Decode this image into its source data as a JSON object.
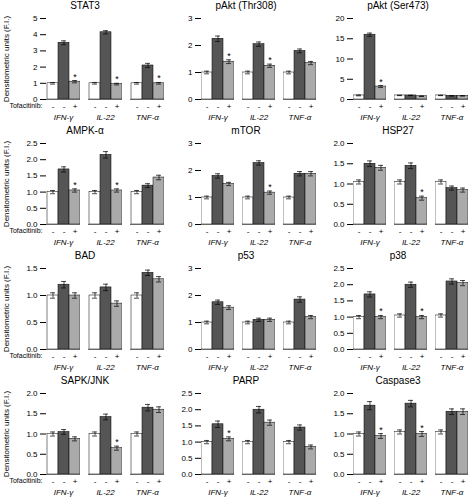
{
  "chart_data": [
    {
      "type": "bar",
      "title": "STAT3",
      "categories": [
        "IFN-γ",
        "IL-22",
        "TNF-α"
      ],
      "series": [
        {
          "name": "-",
          "color": "white",
          "values": [
            1.0,
            1.0,
            1.0
          ],
          "errors": [
            0.05,
            0.05,
            0.05
          ],
          "annotations": [
            null,
            null,
            null
          ]
        },
        {
          "name": "-",
          "color": "#555555",
          "values": [
            3.5,
            4.15,
            2.1
          ],
          "errors": [
            0.12,
            0.1,
            0.13
          ],
          "annotations": [
            null,
            null,
            null
          ]
        },
        {
          "name": "+",
          "color": "#aaaaaa",
          "values": [
            1.1,
            0.95,
            1.0
          ],
          "errors": [
            0.07,
            0.05,
            0.05
          ],
          "annotations": [
            "*",
            "*",
            "*"
          ]
        }
      ],
      "ylim": [
        0,
        5
      ],
      "yticks": [
        0,
        1,
        2,
        3,
        4,
        5
      ],
      "ylabel": "Densitometric units (F.I.)",
      "annotation": "Tofacitinib:",
      "grid": false
    },
    {
      "type": "bar",
      "title": "pAkt (Thr308)",
      "categories": [
        "IFN-γ",
        "IL-22",
        "TNF-α"
      ],
      "series": [
        {
          "name": "-",
          "color": "white",
          "values": [
            1.0,
            1.0,
            1.0
          ],
          "errors": [
            0.05,
            0.05,
            0.05
          ],
          "annotations": [
            null,
            null,
            null
          ]
        },
        {
          "name": "-",
          "color": "#555555",
          "values": [
            2.25,
            2.05,
            1.8
          ],
          "errors": [
            0.1,
            0.08,
            0.07
          ],
          "annotations": [
            null,
            null,
            null
          ]
        },
        {
          "name": "+",
          "color": "#aaaaaa",
          "values": [
            1.4,
            1.25,
            1.35
          ],
          "errors": [
            0.07,
            0.06,
            0.06
          ],
          "annotations": [
            "*",
            "*",
            null
          ]
        }
      ],
      "ylim": [
        0,
        3
      ],
      "yticks": [
        0,
        1,
        2,
        3
      ],
      "grid": false
    },
    {
      "type": "bar",
      "title": "pAkt (Ser473)",
      "categories": [
        "IFN-γ",
        "IL-22",
        "TNF-α"
      ],
      "series": [
        {
          "name": "-",
          "color": "white",
          "values": [
            1.0,
            1.0,
            1.0
          ],
          "errors": [
            0.1,
            0.05,
            0.05
          ],
          "annotations": [
            null,
            null,
            null
          ]
        },
        {
          "name": "-",
          "color": "#555555",
          "values": [
            16.0,
            1.0,
            0.9
          ],
          "errors": [
            0.4,
            0.05,
            0.05
          ],
          "annotations": [
            null,
            null,
            null
          ]
        },
        {
          "name": "+",
          "color": "#aaaaaa",
          "values": [
            3.2,
            0.8,
            0.9
          ],
          "errors": [
            0.25,
            0.05,
            0.05
          ],
          "annotations": [
            "*",
            null,
            null
          ]
        }
      ],
      "ylim": [
        0,
        20
      ],
      "yticks": [
        0,
        5,
        10,
        15,
        20
      ],
      "grid": false
    },
    {
      "type": "bar",
      "title": "AMPK-α",
      "categories": [
        "IFN-γ",
        "IL-22",
        "TNF-α"
      ],
      "series": [
        {
          "name": "-",
          "color": "white",
          "values": [
            1.0,
            1.0,
            1.0
          ],
          "errors": [
            0.05,
            0.05,
            0.05
          ],
          "annotations": [
            null,
            null,
            null
          ]
        },
        {
          "name": "-",
          "color": "#555555",
          "values": [
            1.7,
            2.15,
            1.2
          ],
          "errors": [
            0.08,
            0.1,
            0.06
          ],
          "annotations": [
            null,
            null,
            null
          ]
        },
        {
          "name": "+",
          "color": "#aaaaaa",
          "values": [
            1.05,
            1.05,
            1.45
          ],
          "errors": [
            0.05,
            0.05,
            0.07
          ],
          "annotations": [
            "*",
            "*",
            null
          ]
        }
      ],
      "ylim": [
        0,
        2.5
      ],
      "yticks": [
        {
          "value": 0,
          "label": "0.0"
        },
        {
          "value": 0.5,
          "label": "0.5"
        },
        {
          "value": 1,
          "label": "1.0"
        },
        {
          "value": 1.5,
          "label": "1.5"
        },
        {
          "value": 2,
          "label": "2.0"
        },
        {
          "value": 2.5,
          "label": "2.5"
        }
      ],
      "ylabel": "Densitometric units (F.I.)",
      "annotation": "Tofacitinib:",
      "grid": false
    },
    {
      "type": "bar",
      "title": "mTOR",
      "categories": [
        "IFN-γ",
        "IL-22",
        "TNF-α"
      ],
      "series": [
        {
          "name": "-",
          "color": "white",
          "values": [
            1.0,
            1.0,
            1.0
          ],
          "errors": [
            0.05,
            0.05,
            0.05
          ],
          "annotations": [
            null,
            null,
            null
          ]
        },
        {
          "name": "-",
          "color": "#555555",
          "values": [
            1.8,
            2.28,
            1.88
          ],
          "errors": [
            0.08,
            0.08,
            0.08
          ],
          "annotations": [
            null,
            null,
            null
          ]
        },
        {
          "name": "+",
          "color": "#aaaaaa",
          "values": [
            1.5,
            1.18,
            1.88
          ],
          "errors": [
            0.06,
            0.06,
            0.08
          ],
          "annotations": [
            null,
            "*",
            null
          ]
        }
      ],
      "ylim": [
        0,
        3
      ],
      "yticks": [
        0,
        1,
        2,
        3
      ],
      "grid": false
    },
    {
      "type": "bar",
      "title": "HSP27",
      "categories": [
        "IFN-γ",
        "IL-22",
        "TNF-α"
      ],
      "series": [
        {
          "name": "-",
          "color": "white",
          "values": [
            1.05,
            1.05,
            1.05
          ],
          "errors": [
            0.05,
            0.05,
            0.05
          ],
          "annotations": [
            null,
            null,
            null
          ]
        },
        {
          "name": "-",
          "color": "#555555",
          "values": [
            1.5,
            1.45,
            0.9
          ],
          "errors": [
            0.07,
            0.07,
            0.05
          ],
          "annotations": [
            null,
            null,
            null
          ]
        },
        {
          "name": "+",
          "color": "#aaaaaa",
          "values": [
            1.4,
            0.65,
            0.85
          ],
          "errors": [
            0.06,
            0.05,
            0.05
          ],
          "annotations": [
            null,
            "*",
            null
          ]
        }
      ],
      "ylim": [
        0,
        2.0
      ],
      "yticks": [
        {
          "value": 0,
          "label": "0.0"
        },
        {
          "value": 0.5,
          "label": "0.5"
        },
        {
          "value": 1,
          "label": "1.0"
        },
        {
          "value": 1.5,
          "label": "1.5"
        },
        {
          "value": 2,
          "label": "2.0"
        }
      ],
      "grid": false
    },
    {
      "type": "bar",
      "title": "BAD",
      "categories": [
        "IFN-γ",
        "IL-22",
        "TNF-α"
      ],
      "series": [
        {
          "name": "-",
          "color": "white",
          "values": [
            1.0,
            1.0,
            1.0
          ],
          "errors": [
            0.05,
            0.05,
            0.05
          ],
          "annotations": [
            null,
            null,
            null
          ]
        },
        {
          "name": "-",
          "color": "#555555",
          "values": [
            1.2,
            1.15,
            1.42
          ],
          "errors": [
            0.06,
            0.06,
            0.05
          ],
          "annotations": [
            null,
            null,
            null
          ]
        },
        {
          "name": "+",
          "color": "#aaaaaa",
          "values": [
            1.0,
            0.85,
            1.3
          ],
          "errors": [
            0.05,
            0.05,
            0.05
          ],
          "annotations": [
            null,
            null,
            null
          ]
        }
      ],
      "ylim": [
        0,
        1.5
      ],
      "yticks": [
        {
          "value": 0,
          "label": "0.0"
        },
        {
          "value": 0.5,
          "label": "0.5"
        },
        {
          "value": 1,
          "label": "1.0"
        },
        {
          "value": 1.5,
          "label": "1.5"
        }
      ],
      "ylabel": "Densitometric units (F.I.)",
      "annotation": "Tofacitinib:",
      "grid": false
    },
    {
      "type": "bar",
      "title": "p53",
      "categories": [
        "IFN-γ",
        "IL-22",
        "TNF-α"
      ],
      "series": [
        {
          "name": "-",
          "color": "white",
          "values": [
            1.0,
            1.0,
            1.0
          ],
          "errors": [
            0.05,
            0.05,
            0.05
          ],
          "annotations": [
            null,
            null,
            null
          ]
        },
        {
          "name": "-",
          "color": "#555555",
          "values": [
            1.75,
            1.1,
            1.85
          ],
          "errors": [
            0.08,
            0.06,
            0.1
          ],
          "annotations": [
            null,
            null,
            null
          ]
        },
        {
          "name": "+",
          "color": "#aaaaaa",
          "values": [
            1.55,
            1.1,
            1.2
          ],
          "errors": [
            0.07,
            0.06,
            0.06
          ],
          "annotations": [
            null,
            null,
            null
          ]
        }
      ],
      "ylim": [
        0,
        3
      ],
      "yticks": [
        0,
        1,
        2,
        3
      ],
      "grid": false
    },
    {
      "type": "bar",
      "title": "p38",
      "categories": [
        "IFN-γ",
        "IL-22",
        "TNF-α"
      ],
      "series": [
        {
          "name": "-",
          "color": "white",
          "values": [
            1.0,
            1.05,
            1.05
          ],
          "errors": [
            0.05,
            0.05,
            0.05
          ],
          "annotations": [
            null,
            null,
            null
          ]
        },
        {
          "name": "-",
          "color": "#555555",
          "values": [
            1.7,
            2.0,
            2.1
          ],
          "errors": [
            0.08,
            0.08,
            0.08
          ],
          "annotations": [
            null,
            null,
            null
          ]
        },
        {
          "name": "+",
          "color": "#aaaaaa",
          "values": [
            1.0,
            1.0,
            2.05
          ],
          "errors": [
            0.05,
            0.05,
            0.08
          ],
          "annotations": [
            "*",
            "*",
            null
          ]
        }
      ],
      "ylim": [
        0,
        2.5
      ],
      "yticks": [
        {
          "value": 0,
          "label": "0.0"
        },
        {
          "value": 0.5,
          "label": "0.5"
        },
        {
          "value": 1,
          "label": "1.0"
        },
        {
          "value": 1.5,
          "label": "1.5"
        },
        {
          "value": 2,
          "label": "2.0"
        },
        {
          "value": 2.5,
          "label": "2.5"
        }
      ],
      "grid": false
    },
    {
      "type": "bar",
      "title": "SAPK/JNK",
      "categories": [
        "IFN-γ",
        "IL-22",
        "TNF-α"
      ],
      "series": [
        {
          "name": "-",
          "color": "white",
          "values": [
            1.0,
            1.0,
            1.0
          ],
          "errors": [
            0.05,
            0.05,
            0.05
          ],
          "annotations": [
            null,
            null,
            null
          ]
        },
        {
          "name": "-",
          "color": "#555555",
          "values": [
            1.05,
            1.42,
            1.65
          ],
          "errors": [
            0.06,
            0.07,
            0.08
          ],
          "annotations": [
            null,
            null,
            null
          ]
        },
        {
          "name": "+",
          "color": "#aaaaaa",
          "values": [
            0.88,
            0.65,
            1.6
          ],
          "errors": [
            0.05,
            0.05,
            0.07
          ],
          "annotations": [
            null,
            "*",
            null
          ]
        }
      ],
      "ylim": [
        0,
        2.0
      ],
      "yticks": [
        {
          "value": 0,
          "label": "0.0"
        },
        {
          "value": 0.5,
          "label": "0.5"
        },
        {
          "value": 1,
          "label": "1.0"
        },
        {
          "value": 1.5,
          "label": "1.5"
        },
        {
          "value": 2,
          "label": "2.0"
        }
      ],
      "ylabel": "Densitometric units (F.I.)",
      "annotation": "Tofacitinib:",
      "grid": false
    },
    {
      "type": "bar",
      "title": "PARP",
      "categories": [
        "IFN-γ",
        "IL-22",
        "TNF-α"
      ],
      "series": [
        {
          "name": "-",
          "color": "white",
          "values": [
            1.0,
            1.0,
            1.0
          ],
          "errors": [
            0.05,
            0.05,
            0.05
          ],
          "annotations": [
            null,
            null,
            null
          ]
        },
        {
          "name": "-",
          "color": "#555555",
          "values": [
            1.55,
            2.0,
            1.45
          ],
          "errors": [
            0.1,
            0.1,
            0.08
          ],
          "annotations": [
            null,
            null,
            null
          ]
        },
        {
          "name": "+",
          "color": "#aaaaaa",
          "values": [
            1.1,
            1.6,
            0.85
          ],
          "errors": [
            0.06,
            0.08,
            0.06
          ],
          "annotations": [
            "*",
            null,
            null
          ]
        }
      ],
      "ylim": [
        0,
        2.5
      ],
      "yticks": [
        {
          "value": 0,
          "label": "0.0"
        },
        {
          "value": 0.5,
          "label": "0.5"
        },
        {
          "value": 1,
          "label": "1.0"
        },
        {
          "value": 1.5,
          "label": "1.5"
        },
        {
          "value": 2,
          "label": "2.0"
        },
        {
          "value": 2.5,
          "label": "2.5"
        }
      ],
      "grid": false
    },
    {
      "type": "bar",
      "title": "Caspase3",
      "categories": [
        "IFN-γ",
        "IL-22",
        "TNF-α"
      ],
      "series": [
        {
          "name": "-",
          "color": "white",
          "values": [
            1.0,
            1.05,
            1.05
          ],
          "errors": [
            0.05,
            0.05,
            0.05
          ],
          "annotations": [
            null,
            null,
            null
          ]
        },
        {
          "name": "-",
          "color": "#555555",
          "values": [
            1.7,
            1.75,
            1.55
          ],
          "errors": [
            0.1,
            0.08,
            0.07
          ],
          "annotations": [
            null,
            null,
            null
          ]
        },
        {
          "name": "+",
          "color": "#aaaaaa",
          "values": [
            0.95,
            1.0,
            1.55
          ],
          "errors": [
            0.06,
            0.06,
            0.07
          ],
          "annotations": [
            "*",
            "*",
            null
          ]
        }
      ],
      "ylim": [
        0,
        2.0
      ],
      "yticks": [
        {
          "value": 0,
          "label": "0.0"
        },
        {
          "value": 0.5,
          "label": "0.5"
        },
        {
          "value": 1,
          "label": "1.0"
        },
        {
          "value": 1.5,
          "label": "1.5"
        },
        {
          "value": 2,
          "label": "2.0"
        }
      ],
      "grid": false
    }
  ]
}
